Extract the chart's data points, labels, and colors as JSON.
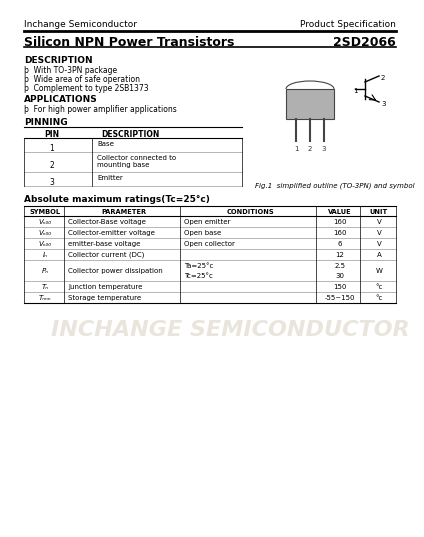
{
  "header_left": "Inchange Semiconductor",
  "header_right": "Product Specification",
  "title_left": "Silicon NPN Power Transistors",
  "title_right": "2SD2066",
  "bg_color": "#ffffff",
  "description_title": "DESCRIPTION",
  "description_items": [
    "þ  With TO-3PN package",
    "þ  Wide area of safe operation",
    "þ  Complement to type 2SB1373"
  ],
  "applications_title": "APPLICATIONS",
  "applications_items": [
    "þ  For high power amplifier applications"
  ],
  "pinning_title": "PINNING",
  "pin_headers": [
    "PIN",
    "DESCRIPTION"
  ],
  "fig_caption": "Fig.1  simplified outline (TO-3PN) and symbol",
  "abs_max_title": "Absolute maximum ratings(Tc=25°c)",
  "watermark_text": "INCHANGE SEMICONDUCTOR",
  "watermark_color": "#d8d0c0"
}
